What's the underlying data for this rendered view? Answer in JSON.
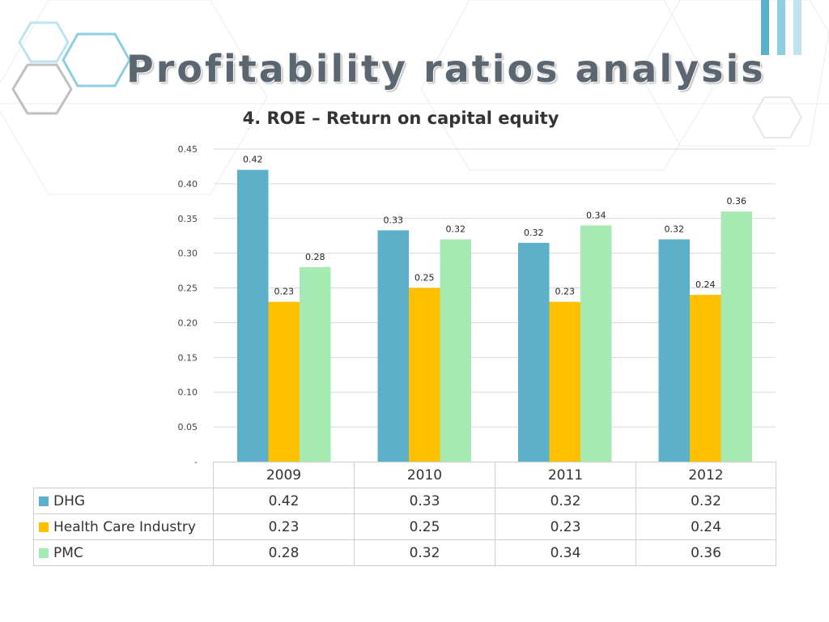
{
  "slide": {
    "title": "Profitability ratios analysis"
  },
  "chart_data": {
    "type": "bar",
    "title": "4. ROE – Return on capital equity",
    "categories": [
      "2009",
      "2010",
      "2011",
      "2012"
    ],
    "series": [
      {
        "name": "DHG",
        "values": [
          0.42,
          0.333,
          0.315,
          0.32
        ],
        "labels": [
          "0.42",
          "0.33",
          "0.32",
          "0.32"
        ],
        "color": "#5cb0c9"
      },
      {
        "name": "Health Care Industry",
        "values": [
          0.23,
          0.25,
          0.23,
          0.24
        ],
        "labels": [
          "0.23",
          "0.25",
          "0.23",
          "0.24"
        ],
        "color": "#ffc000"
      },
      {
        "name": "PMC",
        "values": [
          0.28,
          0.32,
          0.34,
          0.36
        ],
        "labels": [
          "0.28",
          "0.32",
          "0.34",
          "0.36"
        ],
        "color": "#a6eab3"
      }
    ],
    "ylim": [
      0,
      0.45
    ],
    "yticks": [
      "-",
      "0.05",
      "0.10",
      "0.15",
      "0.20",
      "0.25",
      "0.30",
      "0.35",
      "0.40",
      "0.45"
    ],
    "grid": true,
    "legend": "data-table"
  },
  "colors": {
    "gridline": "#d9d9d9",
    "hexagon_light_blue": "#bfe3f0",
    "hexagon_blue": "#8dcfe0",
    "hexagon_grey": "#c0c0c0"
  }
}
